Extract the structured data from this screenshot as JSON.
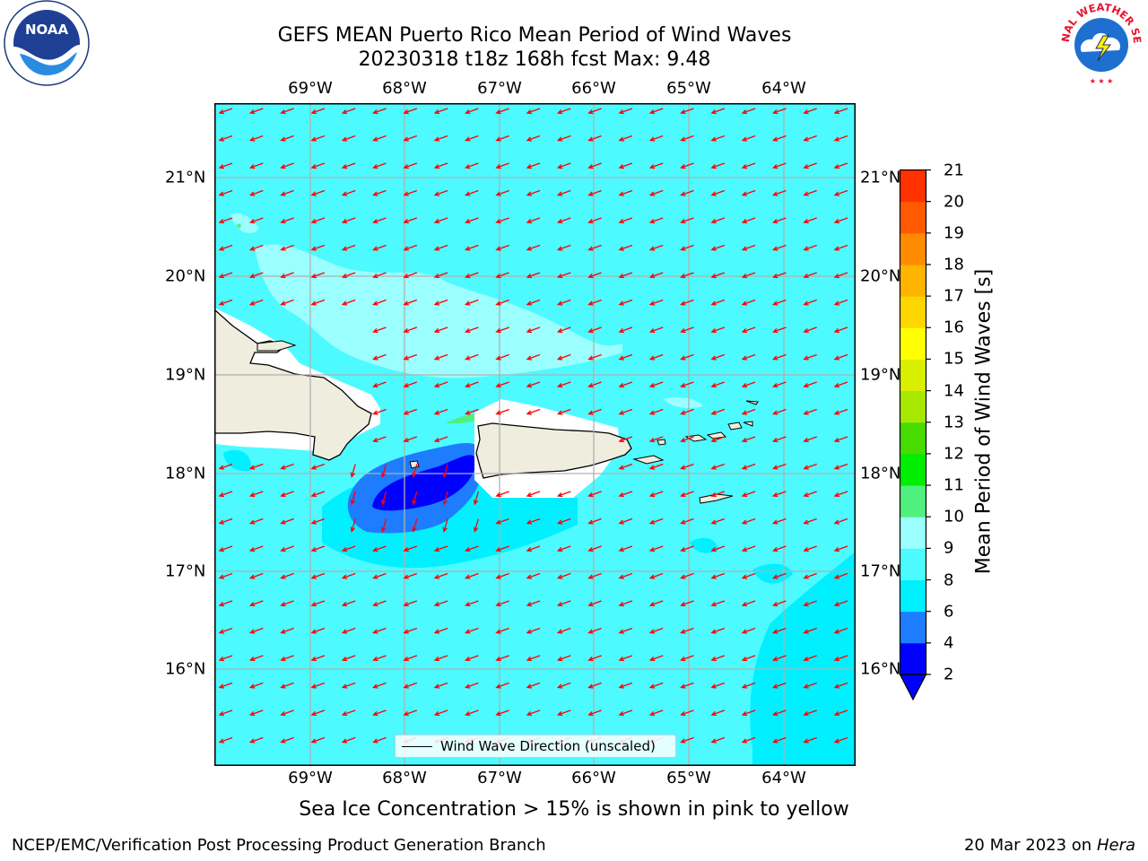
{
  "title_line1": "GEFS MEAN Puerto Rico Mean Period of Wind Waves",
  "title_line2": "20230318 t18z 168h fcst   Max: 9.48",
  "lon_labels": [
    "69°W",
    "68°W",
    "67°W",
    "66°W",
    "65°W",
    "64°W"
  ],
  "lat_labels": [
    "21°N",
    "20°N",
    "19°N",
    "18°N",
    "17°N",
    "16°N"
  ],
  "colorbar": {
    "title": "Mean Period of Wind Waves [s]",
    "tick_labels": [
      "2",
      "4",
      "6",
      "8",
      "9",
      "10",
      "11",
      "12",
      "13",
      "14",
      "15",
      "16",
      "17",
      "18",
      "19",
      "20",
      "21"
    ],
    "colors": [
      "#0000ff",
      "#1e7dff",
      "#00f0ff",
      "#4dfaff",
      "#9bffff",
      "#50f07e",
      "#00ee00",
      "#48dc00",
      "#a8e800",
      "#d8f000",
      "#ffff00",
      "#ffd700",
      "#ffb400",
      "#ff8c00",
      "#ff5a00",
      "#ff3200",
      "#ff0000"
    ]
  },
  "legend_label": "Wind Wave Direction (unscaled)",
  "sea_ice_note": "Sea Ice Concentration > 15% is shown in pink to yellow",
  "footer_left": "NCEP/EMC/Verification Post Processing Product Generation Branch",
  "footer_date": "20 Mar 2023 on",
  "footer_machine": "Hera",
  "logos": {
    "left": "NOAA",
    "right": "NATIONAL WEATHER SERVICE"
  },
  "map_colors": {
    "ocean": "#4dfaff",
    "land": "#efedde",
    "arrow": "#ff0000"
  }
}
